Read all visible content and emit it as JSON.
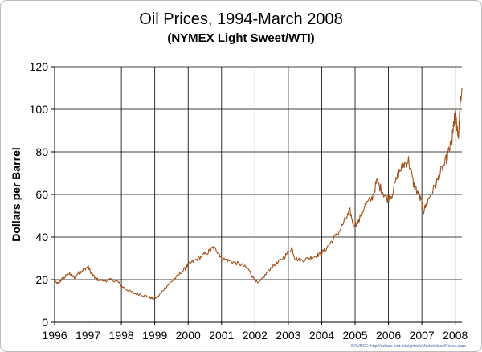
{
  "chart_data": {
    "type": "line",
    "title": "Oil Prices, 1994-March 2008",
    "subtitle": "(NYMEX Light Sweet/WTI)",
    "xlabel": "",
    "ylabel": "Dollars per Barrel",
    "xlim": [
      1996,
      2008.2
    ],
    "ylim": [
      0,
      120
    ],
    "x_ticks": [
      "1996",
      "1997",
      "1998",
      "1999",
      "2000",
      "2001",
      "2002",
      "2003",
      "2004",
      "2005",
      "2006",
      "2007",
      "2008"
    ],
    "y_ticks": [
      "0",
      "20",
      "40",
      "60",
      "80",
      "100",
      "120"
    ],
    "grid": true,
    "legend": "none",
    "source": "SOURCE: http://ozlane.nmt.edu/gotech/Marketplace/Prices.aspx",
    "line_color": "#a3521c",
    "series": [
      {
        "x": [
          1996.0,
          1996.1,
          1996.2,
          1996.3,
          1996.4,
          1996.5,
          1996.6,
          1996.7,
          1996.8,
          1996.9,
          1997.0,
          1997.1,
          1997.2,
          1997.3,
          1997.5,
          1997.7,
          1997.9,
          1998.0,
          1998.2,
          1998.4,
          1998.6,
          1998.8,
          1998.95,
          1999.1,
          1999.3,
          1999.5,
          1999.7,
          1999.9,
          2000.0,
          2000.2,
          2000.4,
          2000.6,
          2000.75,
          2000.9,
          2001.0,
          2001.2,
          2001.4,
          2001.6,
          2001.8,
          2001.95,
          2002.1,
          2002.3,
          2002.5,
          2002.7,
          2002.9,
          2003.1,
          2003.2,
          2003.4,
          2003.6,
          2003.8,
          2003.95,
          2004.1,
          2004.3,
          2004.5,
          2004.7,
          2004.85,
          2004.95,
          2005.1,
          2005.3,
          2005.5,
          2005.65,
          2005.8,
          2005.95,
          2006.1,
          2006.3,
          2006.45,
          2006.6,
          2006.75,
          2006.9,
          2007.0,
          2007.05,
          2007.2,
          2007.4,
          2007.55,
          2007.7,
          2007.8,
          2007.9,
          2007.95,
          2008.0,
          2008.05,
          2008.1,
          2008.15,
          2008.2
        ],
        "y": [
          19,
          18,
          20,
          21,
          23,
          22,
          21,
          23,
          24,
          25,
          26,
          23,
          21,
          20,
          19.5,
          20,
          19,
          17,
          15,
          13.5,
          13,
          12,
          11,
          12,
          16,
          19,
          22,
          25,
          27,
          29,
          31,
          33,
          35,
          33,
          30,
          29,
          28,
          27,
          25,
          21,
          18,
          22,
          26,
          28,
          31,
          35,
          30,
          29,
          30,
          31,
          32,
          34,
          38,
          42,
          48,
          52,
          46,
          47,
          55,
          58,
          66,
          62,
          58,
          60,
          70,
          74,
          76,
          65,
          60,
          56,
          52,
          58,
          64,
          70,
          75,
          80,
          85,
          92,
          98,
          92,
          88,
          102,
          110
        ]
      }
    ]
  }
}
